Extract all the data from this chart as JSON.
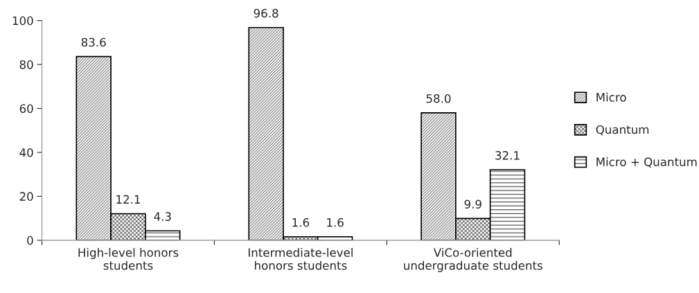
{
  "chart_data": {
    "type": "bar",
    "categories": [
      "High-level honors\nstudents",
      "Intermediate-level\nhonors students",
      "ViCo-oriented\nundergraduate students"
    ],
    "series": [
      {
        "name": "Micro",
        "color": "#000000",
        "values": [
          83.6,
          96.8,
          58.0
        ],
        "value_labels": [
          "83.6",
          "96.8",
          "58.0"
        ]
      },
      {
        "name": "Quantum",
        "color": "#000000",
        "values": [
          12.1,
          1.6,
          9.9
        ],
        "value_labels": [
          "12.1",
          "1.6",
          "9.9"
        ]
      },
      {
        "name": "Micro + Quantum",
        "color": "#000000",
        "values": [
          4.3,
          1.6,
          32.1
        ],
        "value_labels": [
          "4.3",
          "1.6",
          "32.1"
        ]
      }
    ],
    "ylim": [
      0,
      100
    ],
    "yticks": [
      0,
      20,
      40,
      60,
      80,
      100
    ],
    "grid": false,
    "legend": "right"
  }
}
